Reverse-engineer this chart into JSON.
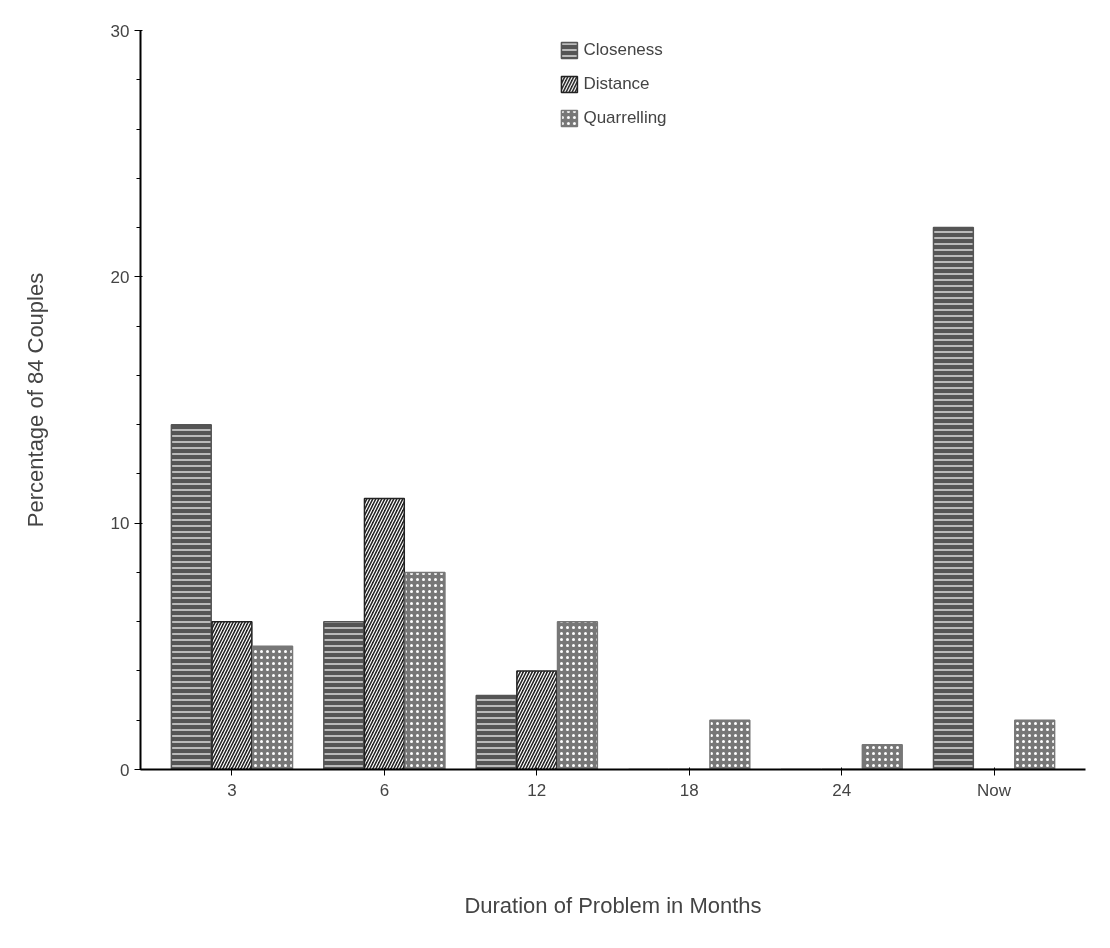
{
  "chart_data": {
    "type": "bar",
    "xlabel": "Duration of Problem in Months",
    "ylabel": "Percentage of 84 Couples",
    "categories": [
      "3",
      "6",
      "12",
      "18",
      "24",
      "Now"
    ],
    "series": [
      {
        "name": "Closeness",
        "color": "#555555",
        "values": [
          14,
          6,
          3,
          0,
          0,
          22
        ]
      },
      {
        "name": "Distance",
        "color": "#222222",
        "values": [
          6,
          11,
          4,
          0,
          0,
          0
        ]
      },
      {
        "name": "Quarrelling",
        "color": "#777777",
        "values": [
          5,
          8,
          6,
          2,
          1,
          2
        ]
      }
    ],
    "ylim": [
      0,
      30
    ],
    "yticks": [
      0,
      10,
      20,
      30
    ],
    "grid": false,
    "legend": "top"
  }
}
